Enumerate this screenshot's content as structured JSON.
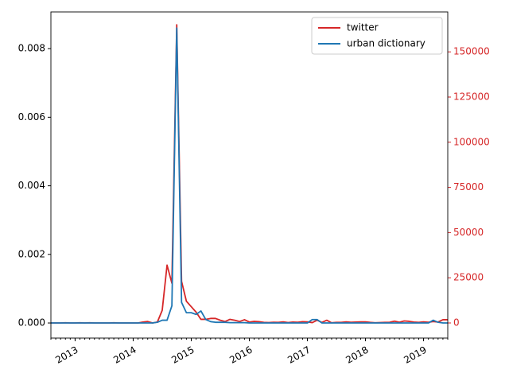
{
  "chart_data": {
    "type": "line",
    "x": [
      "2012-08",
      "2012-09",
      "2012-10",
      "2012-11",
      "2012-12",
      "2013-01",
      "2013-02",
      "2013-03",
      "2013-04",
      "2013-05",
      "2013-06",
      "2013-07",
      "2013-08",
      "2013-09",
      "2013-10",
      "2013-11",
      "2013-12",
      "2014-01",
      "2014-02",
      "2014-03",
      "2014-04",
      "2014-05",
      "2014-06",
      "2014-07",
      "2014-08",
      "2014-09",
      "2014-10",
      "2014-11",
      "2014-12",
      "2015-01",
      "2015-02",
      "2015-03",
      "2015-04",
      "2015-05",
      "2015-06",
      "2015-07",
      "2015-08",
      "2015-09",
      "2015-10",
      "2015-11",
      "2015-12",
      "2016-01",
      "2016-02",
      "2016-03",
      "2016-04",
      "2016-05",
      "2016-06",
      "2016-07",
      "2016-08",
      "2016-09",
      "2016-10",
      "2016-11",
      "2016-12",
      "2017-01",
      "2017-02",
      "2017-03",
      "2017-04",
      "2017-05",
      "2017-06",
      "2017-07",
      "2017-08",
      "2017-09",
      "2017-10",
      "2017-11",
      "2017-12",
      "2018-01",
      "2018-02",
      "2018-03",
      "2018-04",
      "2018-05",
      "2018-06",
      "2018-07",
      "2018-08",
      "2018-09",
      "2018-10",
      "2018-11",
      "2018-12",
      "2019-01",
      "2019-02",
      "2019-03",
      "2019-04",
      "2019-05",
      "2019-06"
    ],
    "series": [
      {
        "name": "twitter",
        "color": "#d62728",
        "axis": "y2",
        "values": [
          0,
          0,
          0,
          100,
          0,
          0,
          100,
          0,
          100,
          0,
          0,
          0,
          0,
          100,
          0,
          0,
          0,
          0,
          0,
          500,
          800,
          0,
          500,
          7000,
          32000,
          22000,
          165000,
          23000,
          12000,
          9000,
          6000,
          2000,
          2000,
          2500,
          2500,
          1500,
          800,
          2000,
          1500,
          800,
          1800,
          500,
          900,
          700,
          300,
          200,
          400,
          300,
          600,
          200,
          500,
          400,
          700,
          600,
          200,
          1500,
          300,
          1500,
          100,
          300,
          300,
          600,
          400,
          500,
          600,
          600,
          300,
          100,
          200,
          300,
          400,
          1000,
          400,
          1100,
          900,
          500,
          300,
          600,
          400,
          800,
          500,
          1800,
          1800
        ]
      },
      {
        "name": "urban dictionary",
        "color": "#1f77b4",
        "values": [
          0,
          0,
          0,
          0,
          0,
          0,
          0,
          0,
          0,
          0,
          0,
          0,
          0,
          0,
          0,
          0,
          0,
          0,
          0,
          0,
          0,
          0,
          2e-05,
          8e-05,
          8e-05,
          0.0005,
          0.0086,
          0.0006,
          0.0003,
          0.0003,
          0.00025,
          0.00035,
          0.0001,
          4e-05,
          2e-05,
          2e-05,
          2e-05,
          1e-05,
          1e-05,
          1e-05,
          1e-05,
          0,
          0,
          0,
          0,
          0,
          0,
          0,
          0,
          0,
          0,
          0,
          0,
          0,
          0.0001,
          0.0001,
          0,
          0,
          0,
          0,
          0,
          0,
          0,
          0,
          0,
          0,
          0,
          0,
          0,
          0,
          0,
          0,
          0,
          0,
          0,
          0,
          0,
          0,
          0,
          8e-05,
          2e-05,
          0,
          0
        ]
      }
    ],
    "xlim": [
      "2012-08",
      "2019-06"
    ],
    "xticks": [
      {
        "value": "2013-01",
        "label": "2013"
      },
      {
        "value": "2014-01",
        "label": "2014"
      },
      {
        "value": "2015-01",
        "label": "2015"
      },
      {
        "value": "2016-01",
        "label": "2016"
      },
      {
        "value": "2017-01",
        "label": "2017"
      },
      {
        "value": "2018-01",
        "label": "2018"
      },
      {
        "value": "2019-01",
        "label": "2019"
      }
    ],
    "ylim": [
      -0.00044,
      0.00907
    ],
    "yticks": [
      {
        "value": 0,
        "label": "0.000"
      },
      0.002,
      0.004,
      0.006,
      0.008
    ],
    "y2lim": [
      -8360,
      172100
    ],
    "y2ticks": [
      0,
      25000,
      50000,
      75000,
      100000,
      125000,
      150000
    ],
    "y2color": "#d62728",
    "legend": "upper right"
  }
}
